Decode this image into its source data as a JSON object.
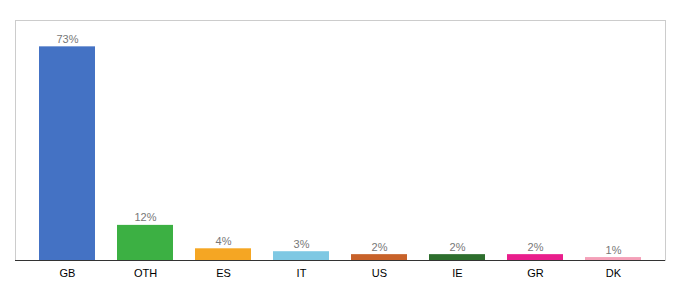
{
  "chart_data": {
    "type": "bar",
    "categories": [
      "GB",
      "OTH",
      "ES",
      "IT",
      "US",
      "IE",
      "GR",
      "DK"
    ],
    "values": [
      73,
      12,
      4,
      3,
      2,
      2,
      2,
      1
    ],
    "value_labels": [
      "73%",
      "12%",
      "4%",
      "3%",
      "2%",
      "2%",
      "2%",
      "1%"
    ],
    "colors": [
      "#4472c4",
      "#3cb043",
      "#f5a623",
      "#7ec8e3",
      "#c8622a",
      "#2d6e2d",
      "#e91e8c",
      "#f4a0b8"
    ],
    "ylim": [
      0,
      82
    ],
    "data_labels": true,
    "tick_labels": "x",
    "grid": false
  }
}
